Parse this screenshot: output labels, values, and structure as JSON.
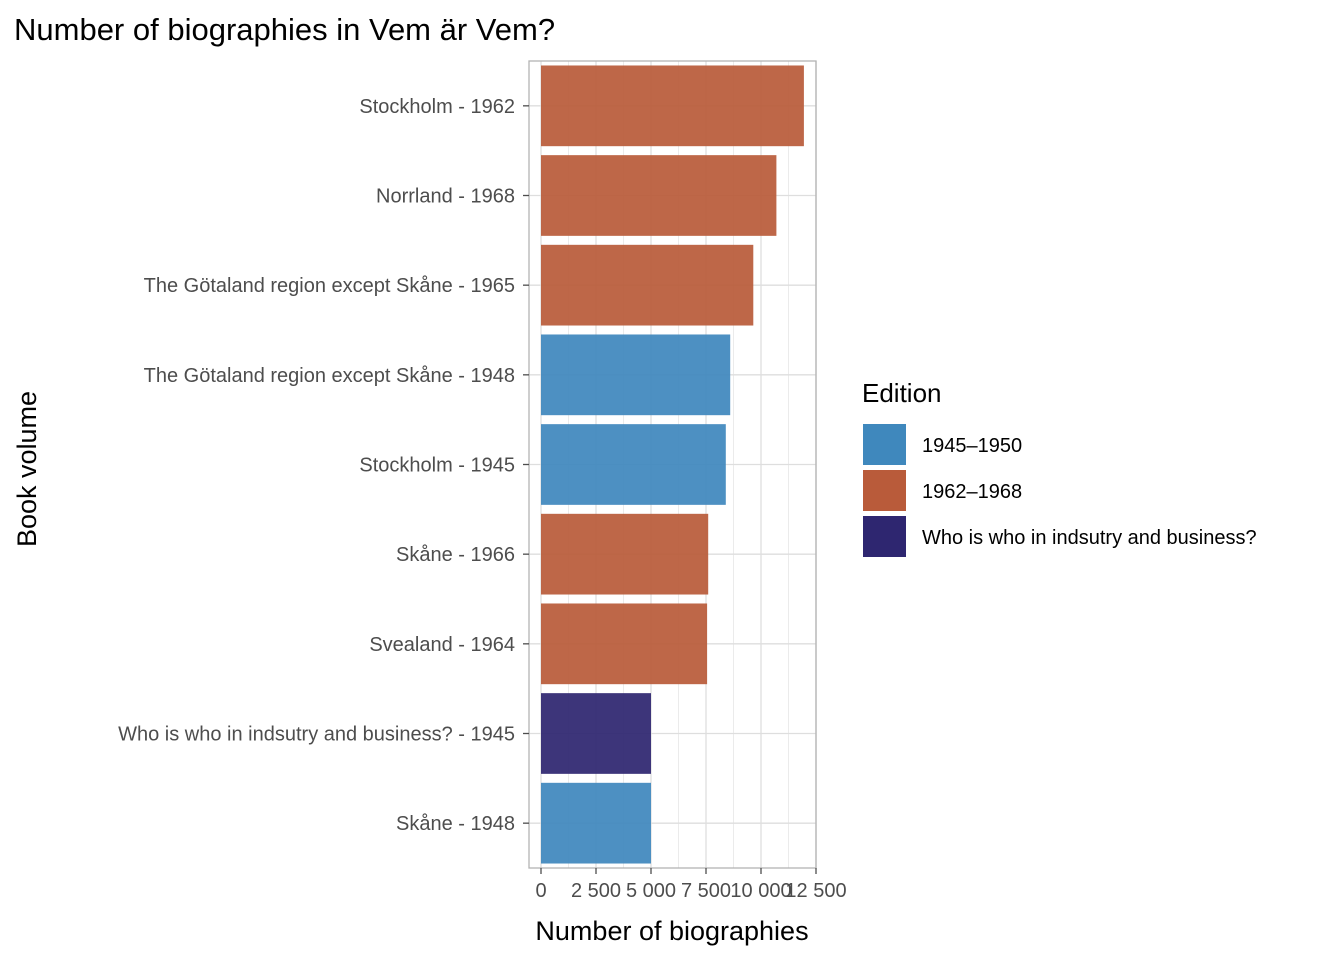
{
  "chart_data": {
    "type": "bar",
    "orientation": "horizontal",
    "title": "Number of biographies in Vem är Vem?",
    "xlabel": "Number of biographies",
    "ylabel": "Book volume",
    "xlim": [
      -500,
      12800
    ],
    "x_ticks": [
      0,
      2500,
      5000,
      7500,
      10000,
      12500
    ],
    "x_tick_labels": [
      "0",
      "2 500",
      "5 000",
      "7 500",
      "10 000",
      "12 500"
    ],
    "grid": true,
    "legend": {
      "title": "Edition",
      "position": "right",
      "entries": [
        {
          "label": "1945–1950",
          "color": "#3f88bd"
        },
        {
          "label": "1962–1968",
          "color": "#b95b3a"
        },
        {
          "label": "Who is who in indsutry and business?",
          "color": "#2e2670"
        }
      ]
    },
    "bars": [
      {
        "category": "Stockholm - 1962",
        "value": 11950,
        "edition": "1962–1968"
      },
      {
        "category": "Norrland - 1968",
        "value": 10700,
        "edition": "1962–1968"
      },
      {
        "category": "The Götaland region except Skåne - 1965",
        "value": 9650,
        "edition": "1962–1968"
      },
      {
        "category": "The Götaland region except Skåne - 1948",
        "value": 8600,
        "edition": "1945–1950"
      },
      {
        "category": "Stockholm - 1945",
        "value": 8400,
        "edition": "1945–1950"
      },
      {
        "category": "Skåne - 1966",
        "value": 7600,
        "edition": "1962–1968"
      },
      {
        "category": "Svealand - 1964",
        "value": 7550,
        "edition": "1962–1968"
      },
      {
        "category": "Who is who in indsutry and business? - 1945",
        "value": 5000,
        "edition": "Who is who in indsutry and business?"
      },
      {
        "category": "Skåne - 1948",
        "value": 5000,
        "edition": "1945–1950"
      }
    ]
  }
}
